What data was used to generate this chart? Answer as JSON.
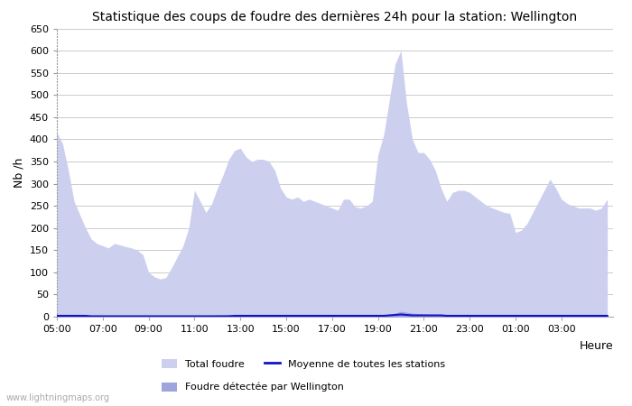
{
  "title": "Statistique des coups de foudre des dernières 24h pour la station: Wellington",
  "xlabel": "Heure",
  "ylabel": "Nb /h",
  "ylim": [
    0,
    650
  ],
  "yticks": [
    0,
    50,
    100,
    150,
    200,
    250,
    300,
    350,
    400,
    450,
    500,
    550,
    600,
    650
  ],
  "xtick_labels": [
    "05:00",
    "07:00",
    "09:00",
    "11:00",
    "13:00",
    "15:00",
    "17:00",
    "19:00",
    "21:00",
    "23:00",
    "01:00",
    "03:00"
  ],
  "bg_color": "#ffffff",
  "plot_bg_color": "#ffffff",
  "grid_color": "#cccccc",
  "fill_color_total": "#ccd0ee",
  "fill_color_wellington": "#9ea4dc",
  "line_color_moyenne": "#1111cc",
  "watermark": "www.lightningmaps.org",
  "hours": [
    5.0,
    5.25,
    5.5,
    5.75,
    6.0,
    6.25,
    6.5,
    6.75,
    7.0,
    7.25,
    7.5,
    7.75,
    8.0,
    8.25,
    8.5,
    8.75,
    9.0,
    9.25,
    9.5,
    9.75,
    10.0,
    10.25,
    10.5,
    10.75,
    11.0,
    11.25,
    11.5,
    11.75,
    12.0,
    12.25,
    12.5,
    12.75,
    13.0,
    13.25,
    13.5,
    13.75,
    14.0,
    14.25,
    14.5,
    14.75,
    15.0,
    15.25,
    15.5,
    15.75,
    16.0,
    16.25,
    16.5,
    16.75,
    17.0,
    17.25,
    17.5,
    17.75,
    18.0,
    18.25,
    18.5,
    18.75,
    19.0,
    19.25,
    19.5,
    19.75,
    20.0,
    20.25,
    20.5,
    20.75,
    21.0,
    21.25,
    21.5,
    21.75,
    22.0,
    22.25,
    22.5,
    22.75,
    23.0,
    23.25,
    23.5,
    23.75,
    24.0,
    24.25,
    24.5,
    24.75,
    25.0,
    25.25,
    25.5,
    25.75,
    26.0,
    26.25,
    26.5,
    26.75,
    27.0,
    27.25,
    27.5,
    27.75,
    28.0,
    28.25,
    28.5,
    28.75,
    29.0
  ],
  "total_foudre": [
    415,
    390,
    330,
    260,
    230,
    200,
    175,
    165,
    160,
    155,
    165,
    162,
    158,
    155,
    150,
    140,
    100,
    90,
    85,
    88,
    110,
    135,
    160,
    200,
    285,
    260,
    235,
    255,
    290,
    320,
    355,
    375,
    380,
    360,
    350,
    355,
    355,
    350,
    330,
    290,
    270,
    265,
    270,
    260,
    265,
    260,
    255,
    250,
    245,
    240,
    265,
    265,
    248,
    245,
    250,
    260,
    365,
    410,
    490,
    570,
    600,
    480,
    400,
    370,
    370,
    355,
    330,
    290,
    260,
    280,
    285,
    285,
    280,
    270,
    260,
    250,
    245,
    240,
    235,
    233,
    190,
    195,
    210,
    235,
    260,
    285,
    310,
    290,
    265,
    255,
    250,
    245,
    245,
    245,
    240,
    245,
    265
  ],
  "wellington_foudre": [
    5,
    4,
    3,
    2,
    2,
    2,
    1,
    1,
    1,
    1,
    1,
    1,
    1,
    1,
    1,
    1,
    1,
    1,
    1,
    1,
    1,
    1,
    1,
    2,
    3,
    3,
    3,
    3,
    4,
    4,
    5,
    5,
    5,
    4,
    4,
    4,
    4,
    4,
    3,
    3,
    3,
    3,
    3,
    2,
    2,
    2,
    2,
    2,
    2,
    2,
    2,
    2,
    2,
    2,
    2,
    2,
    3,
    4,
    6,
    8,
    12,
    10,
    8,
    7,
    6,
    5,
    4,
    3,
    2,
    2,
    2,
    2,
    2,
    2,
    2,
    1,
    1,
    1,
    1,
    1,
    1,
    1,
    1,
    1,
    1,
    2,
    2,
    2,
    2,
    2,
    2,
    2,
    2,
    2,
    2,
    2,
    3
  ],
  "moyenne_stations": [
    2,
    2,
    2,
    2,
    2,
    2,
    1,
    1,
    1,
    1,
    1,
    1,
    1,
    1,
    1,
    1,
    1,
    1,
    1,
    1,
    1,
    1,
    1,
    1,
    1,
    1,
    1,
    1,
    1,
    1,
    1,
    2,
    2,
    2,
    2,
    2,
    2,
    2,
    2,
    2,
    2,
    2,
    2,
    2,
    2,
    2,
    2,
    2,
    2,
    2,
    2,
    2,
    2,
    2,
    2,
    2,
    2,
    2,
    3,
    4,
    5,
    4,
    3,
    3,
    3,
    3,
    3,
    3,
    2,
    2,
    2,
    2,
    2,
    2,
    2,
    2,
    2,
    2,
    2,
    2,
    2,
    2,
    2,
    2,
    2,
    2,
    2,
    2,
    2,
    2,
    2,
    2,
    2,
    2,
    2,
    2,
    2
  ]
}
